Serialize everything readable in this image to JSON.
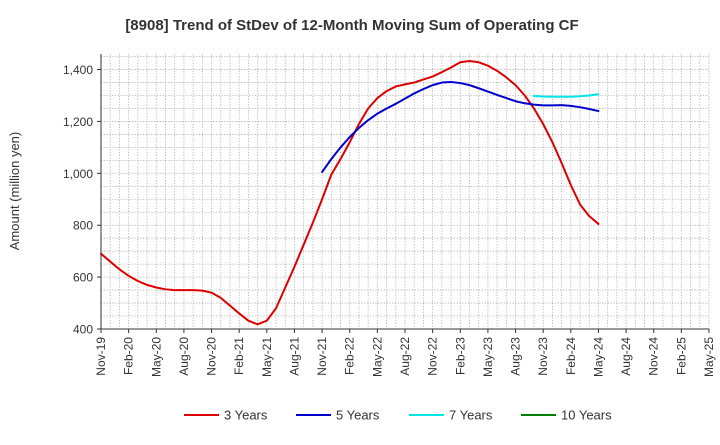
{
  "chart_data": {
    "type": "line",
    "title": "[8908]  Trend of StDev of 12-Month Moving Sum of Operating CF",
    "ylabel": "Amount (million yen)",
    "xlabel": "",
    "ylim": [
      400,
      1460
    ],
    "yticks": [
      400,
      600,
      800,
      1000,
      1200,
      1400
    ],
    "ytick_labels": [
      "400",
      "600",
      "800",
      "1,000",
      "1,200",
      "1,400"
    ],
    "x_start": "2019-11",
    "x_end": "2025-05",
    "xtick_labels": [
      "Nov-19",
      "Feb-20",
      "May-20",
      "Aug-20",
      "Nov-20",
      "Feb-21",
      "May-21",
      "Aug-21",
      "Nov-21",
      "Feb-22",
      "May-22",
      "Aug-22",
      "Nov-22",
      "Feb-23",
      "May-23",
      "Aug-23",
      "Nov-23",
      "Feb-24",
      "May-24",
      "Aug-24",
      "Nov-24",
      "Feb-25",
      "May-25"
    ],
    "grid": true,
    "legend_position": "bottom",
    "series": [
      {
        "name": "3 Years",
        "color": "#dd0000",
        "x": [
          "2019-11",
          "2019-12",
          "2020-01",
          "2020-02",
          "2020-03",
          "2020-04",
          "2020-05",
          "2020-06",
          "2020-07",
          "2020-08",
          "2020-09",
          "2020-10",
          "2020-11",
          "2020-12",
          "2021-01",
          "2021-02",
          "2021-03",
          "2021-04",
          "2021-05",
          "2021-06",
          "2021-07",
          "2021-08",
          "2021-09",
          "2021-10",
          "2021-11",
          "2021-12",
          "2022-01",
          "2022-02",
          "2022-03",
          "2022-04",
          "2022-05",
          "2022-06",
          "2022-07",
          "2022-08",
          "2022-09",
          "2022-10",
          "2022-11",
          "2022-12",
          "2023-01",
          "2023-02",
          "2023-03",
          "2023-04",
          "2023-05",
          "2023-06",
          "2023-07",
          "2023-08",
          "2023-09",
          "2023-10",
          "2023-11",
          "2023-12",
          "2024-01",
          "2024-02",
          "2024-03",
          "2024-04",
          "2024-05"
        ],
        "values": [
          690,
          660,
          630,
          605,
          585,
          570,
          560,
          553,
          550,
          550,
          550,
          548,
          540,
          520,
          490,
          460,
          432,
          418,
          432,
          480,
          560,
          640,
          725,
          810,
          900,
          995,
          1055,
          1120,
          1190,
          1250,
          1290,
          1317,
          1335,
          1343,
          1350,
          1362,
          1373,
          1390,
          1408,
          1428,
          1433,
          1428,
          1415,
          1395,
          1370,
          1340,
          1300,
          1250,
          1190,
          1120,
          1040,
          955,
          880,
          835,
          805
        ]
      },
      {
        "name": "5 Years",
        "color": "#0000cc",
        "x": [
          "2021-11",
          "2021-12",
          "2022-01",
          "2022-02",
          "2022-03",
          "2022-04",
          "2022-05",
          "2022-06",
          "2022-07",
          "2022-08",
          "2022-09",
          "2022-10",
          "2022-11",
          "2022-12",
          "2023-01",
          "2023-02",
          "2023-03",
          "2023-04",
          "2023-05",
          "2023-06",
          "2023-07",
          "2023-08",
          "2023-09",
          "2023-10",
          "2023-11",
          "2023-12",
          "2024-01",
          "2024-02",
          "2024-03",
          "2024-04",
          "2024-05"
        ],
        "values": [
          1005,
          1055,
          1100,
          1140,
          1175,
          1205,
          1230,
          1250,
          1268,
          1288,
          1308,
          1325,
          1340,
          1350,
          1352,
          1348,
          1340,
          1328,
          1315,
          1302,
          1290,
          1278,
          1270,
          1265,
          1262,
          1262,
          1263,
          1260,
          1255,
          1248,
          1240
        ]
      },
      {
        "name": "7 Years",
        "color": "#00e5e5",
        "x": [
          "2023-10",
          "2023-11",
          "2023-12",
          "2024-01",
          "2024-02",
          "2024-03",
          "2024-04",
          "2024-05"
        ],
        "values": [
          1298,
          1296,
          1295,
          1295,
          1295,
          1297,
          1300,
          1305
        ]
      },
      {
        "name": "10 Years",
        "color": "#008000",
        "x": [],
        "values": []
      }
    ]
  }
}
